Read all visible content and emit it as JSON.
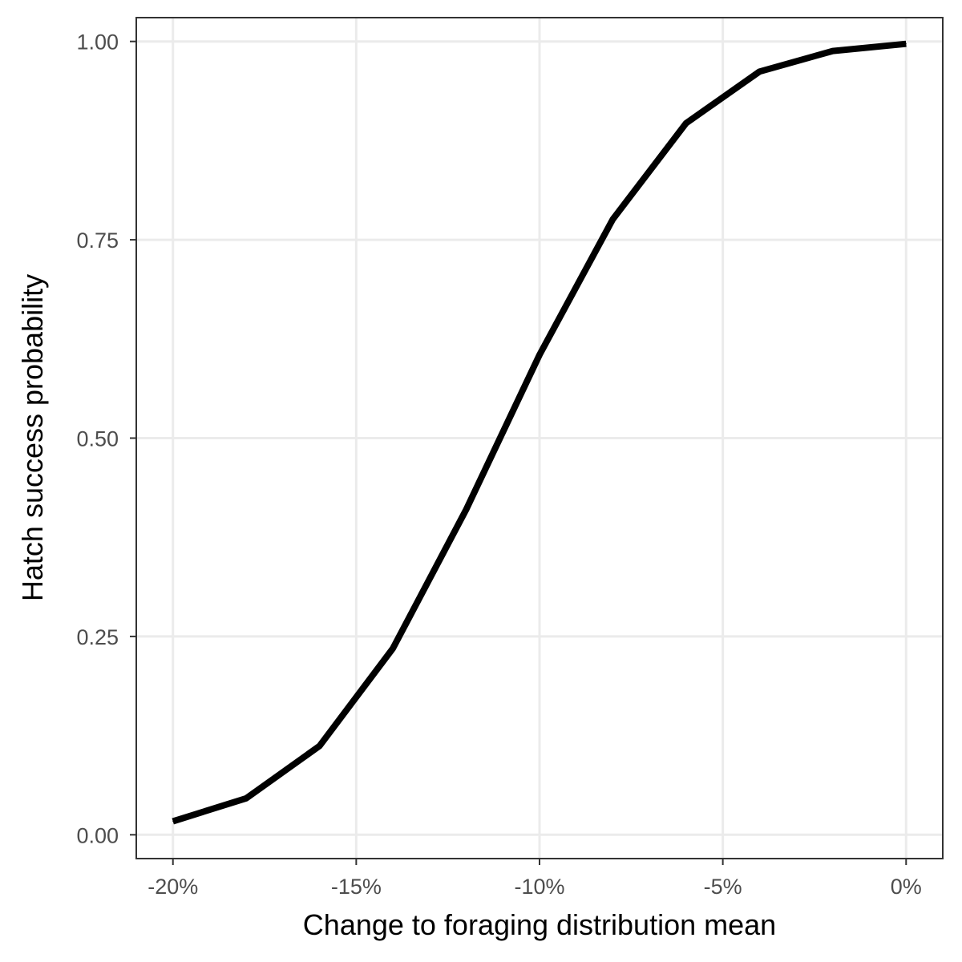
{
  "chart_data": {
    "type": "line",
    "xlabel": "Change to foraging distribution mean",
    "ylabel": "Hatch success probability",
    "xlim": [
      -21,
      1
    ],
    "ylim": [
      -0.03,
      1.03
    ],
    "x_ticks": [
      -20,
      -15,
      -10,
      -5,
      0
    ],
    "x_tick_labels": [
      "-20%",
      "-15%",
      "-10%",
      "-5%",
      "0%"
    ],
    "y_ticks": [
      0,
      0.25,
      0.5,
      0.75,
      1.0
    ],
    "y_tick_labels": [
      "0.00",
      "0.25",
      "0.50",
      "0.75",
      "1.00"
    ],
    "grid": true,
    "series": [
      {
        "x": [
          -20,
          -18,
          -16,
          -14,
          -12,
          -10,
          -8,
          -6,
          -4,
          -2,
          0
        ],
        "y": [
          0.017,
          0.046,
          0.112,
          0.235,
          0.41,
          0.605,
          0.776,
          0.897,
          0.962,
          0.988,
          0.997
        ],
        "color": "#000000"
      }
    ]
  }
}
